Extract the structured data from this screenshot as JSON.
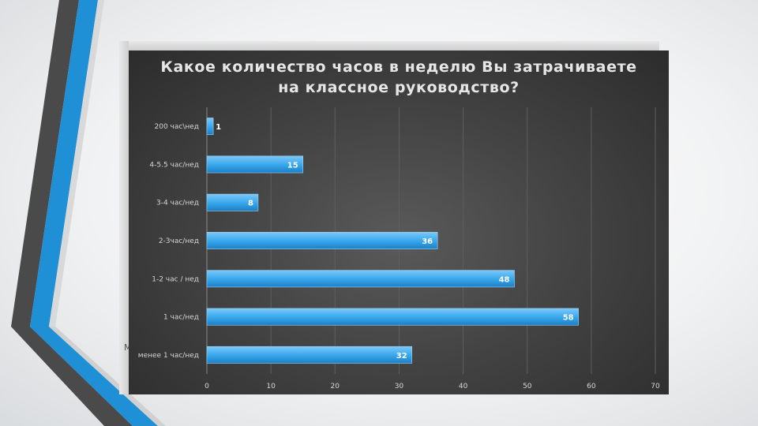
{
  "chart_data": {
    "type": "bar",
    "orientation": "horizontal",
    "title_line1": "Какое количество часов в неделю Вы затрачиваете",
    "title_line2": "на классное руководство?",
    "categories": [
      "200 час\\нед",
      "4-5.5 час/нед",
      "3-4 час/нед",
      "2-3час/нед",
      "1-2 час / нед",
      "1 час/нед",
      "менее 1 час/нед"
    ],
    "values": [
      1,
      15,
      8,
      36,
      48,
      58,
      32
    ],
    "xlim": [
      0,
      70
    ],
    "xticks": [
      0,
      10,
      20,
      30,
      40,
      50,
      60,
      70
    ],
    "grid": true,
    "bar_color": "#3aa9ee",
    "legend": "none"
  },
  "stray_text": "М",
  "colors": {
    "accent_blue": "#1a8fdc",
    "deco_gray": "#4a4a4a"
  }
}
